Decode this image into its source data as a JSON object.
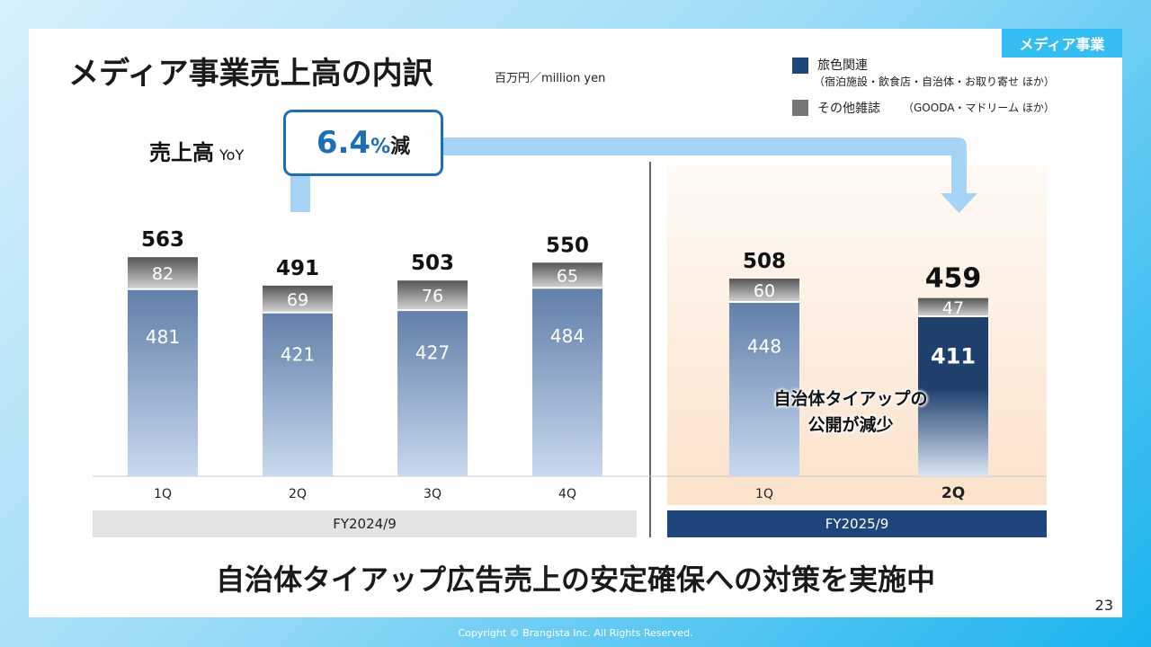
{
  "section_tag": "メディア事業",
  "title": "メディア事業売上高の内訳",
  "unit": "百万円／million yen",
  "legend": [
    {
      "label": "旅色関連",
      "sublabel": "（宿泊施設・飲食店・自治体・お取り寄せ ほか）",
      "color": "#1f467a"
    },
    {
      "label": "その他雑誌",
      "sublabel": "（GOODA・マドリーム ほか）",
      "color": "#777777"
    }
  ],
  "yoy": {
    "label": "売上高",
    "sub": "YoY",
    "value": "6.4",
    "percent": "%",
    "change": "減"
  },
  "callout": [
    "自治体タイアップの",
    "公開が減少"
  ],
  "fiscal_years": [
    "FY2024/9",
    "FY2025/9"
  ],
  "headline": "自治体タイアップ広告売上の安定確保への対策を実施中",
  "page_number": "23",
  "copyright": "Copyright © Brangista Inc. All Rights Reserved.",
  "chart_data": {
    "type": "bar",
    "stacked": true,
    "categories": [
      "1Q",
      "2Q",
      "3Q",
      "4Q",
      "1Q",
      "2Q"
    ],
    "groups": [
      "FY2024/9",
      "FY2024/9",
      "FY2024/9",
      "FY2024/9",
      "FY2025/9",
      "FY2025/9"
    ],
    "series": [
      {
        "name": "旅色関連",
        "values": [
          481,
          421,
          427,
          484,
          448,
          411
        ]
      },
      {
        "name": "その他雑誌",
        "values": [
          82,
          69,
          76,
          65,
          60,
          47
        ]
      }
    ],
    "totals": [
      563,
      491,
      503,
      550,
      508,
      459
    ],
    "highlight_index": 5
  }
}
